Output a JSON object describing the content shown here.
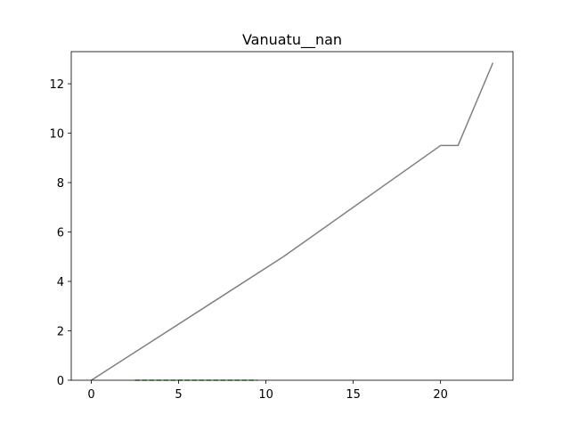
{
  "chart_data": {
    "type": "line",
    "title": "Vanuatu__nan",
    "xlabel": "",
    "ylabel": "",
    "xlim": [
      -1.15,
      24.15
    ],
    "ylim": [
      0,
      13.3
    ],
    "grid": false,
    "x_ticks": [
      0,
      5,
      10,
      15,
      20
    ],
    "y_ticks": [
      0,
      2,
      4,
      6,
      8,
      10,
      12
    ],
    "series": [
      {
        "color": "#808080",
        "style": "solid",
        "x": [
          0,
          11,
          20,
          21,
          23
        ],
        "y": [
          0,
          5.0,
          9.5,
          9.5,
          12.85
        ]
      },
      {
        "color": "#2ca02c",
        "style": "dashed",
        "x": [
          2.5,
          9.5
        ],
        "y": [
          0,
          0
        ]
      }
    ]
  }
}
